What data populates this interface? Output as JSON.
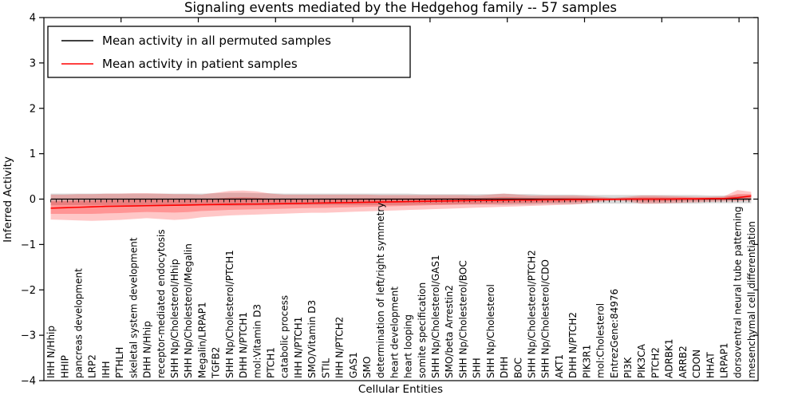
{
  "figure": {
    "title": "Signaling events mediated by the Hedgehog family -- 57 samples",
    "xlabel": "Cellular Entities",
    "ylabel": "Inferred Activity"
  },
  "legend": {
    "items": [
      {
        "label": "Mean activity in all permuted samples",
        "color": "#000000"
      },
      {
        "label": "Mean activity in patient samples",
        "color": "#ff0000"
      }
    ]
  },
  "chart_data": {
    "type": "line",
    "title": "Signaling events mediated by the Hedgehog family -- 57 samples",
    "xlabel": "Cellular Entities",
    "ylabel": "Inferred Activity",
    "ylim": [
      -4,
      4
    ],
    "ytick_labels": [
      "4",
      "3",
      "2",
      "1",
      "0",
      "−1",
      "−2",
      "−3",
      "−4"
    ],
    "yticks": [
      4,
      3,
      2,
      1,
      0,
      -1,
      -2,
      -3,
      -4
    ],
    "grid": false,
    "legend_position": "upper left",
    "categories": [
      "IHH N/Hhip",
      "HHIP",
      "pancreas development",
      "LRP2",
      "IHH",
      "PTHLH",
      "skeletal system development",
      "DHH N/Hhip",
      "receptor-mediated endocytosis",
      "SHH Np/Cholesterol/Hhip",
      "SHH Np/Cholesterol/Megalin",
      "Megalin/LRPAP1",
      "TGFB2",
      "SHH Np/Cholesterol/PTCH1",
      "DHH N/PTCH1",
      "mol:Vitamin D3",
      "PTCH1",
      "catabolic process",
      "IHH N/PTCH1",
      "SMO/Vitamin D3",
      "STIL",
      "IHH N/PTCH2",
      "GAS1",
      "SMO",
      "determination of left/right symmetry",
      "heart development",
      "heart looping",
      "somite specification",
      "SHH Np/Cholesterol/GAS1",
      "SMO/beta Arrestin2",
      "SHH Np/Cholesterol/BOC",
      "SHH",
      "SHH Np/Cholesterol",
      "DHH",
      "BOC",
      "SHH Np/Cholesterol/PTCH2",
      "SHH Np/Cholesterol/CDO",
      "AKT1",
      "DHH N/PTCH2",
      "PIK3R1",
      "mol:Cholesterol",
      "EntrezGene:84976",
      "PI3K",
      "PIK3CA",
      "PTCH2",
      "ADRBK1",
      "ARRB2",
      "CDON",
      "HHAT",
      "LRPAP1",
      "dorsoventral neural tube patterning",
      "mesenchymal cell differentiation"
    ],
    "series": [
      {
        "name": "Mean activity in all permuted samples",
        "color": "#000000",
        "values": [
          0,
          0,
          0,
          0,
          0,
          0,
          0,
          0,
          0,
          0,
          0,
          0,
          0,
          0,
          0,
          0,
          0,
          0,
          0,
          0,
          0,
          0,
          0,
          0,
          0,
          0,
          0,
          0,
          0,
          0,
          0,
          0,
          0,
          0,
          0,
          0,
          0,
          0,
          0,
          0,
          0,
          0,
          0,
          0,
          0,
          0,
          0,
          0,
          0,
          0,
          0,
          0
        ]
      },
      {
        "name": "Mean activity in patient samples",
        "color": "#ff0000",
        "values": [
          -0.2,
          -0.19,
          -0.18,
          -0.17,
          -0.16,
          -0.155,
          -0.15,
          -0.145,
          -0.14,
          -0.135,
          -0.13,
          -0.125,
          -0.12,
          -0.115,
          -0.11,
          -0.11,
          -0.105,
          -0.1,
          -0.095,
          -0.09,
          -0.085,
          -0.08,
          -0.075,
          -0.07,
          -0.065,
          -0.06,
          -0.055,
          -0.05,
          -0.045,
          -0.04,
          -0.035,
          -0.03,
          -0.03,
          -0.025,
          -0.02,
          -0.02,
          -0.015,
          -0.015,
          -0.01,
          -0.01,
          -0.005,
          -0.005,
          0.0,
          0.0,
          0.0,
          0.0,
          0.005,
          0.005,
          0.01,
          0.01,
          0.03,
          0.07
        ]
      }
    ],
    "bands": [
      {
        "name": "permuted-sample-range",
        "color": "#999999",
        "opacity": 0.38,
        "upper": [
          0.12,
          0.12,
          0.12,
          0.12,
          0.12,
          0.12,
          0.12,
          0.12,
          0.12,
          0.12,
          0.12,
          0.12,
          0.13,
          0.14,
          0.14,
          0.13,
          0.13,
          0.12,
          0.12,
          0.12,
          0.12,
          0.12,
          0.12,
          0.12,
          0.12,
          0.12,
          0.12,
          0.11,
          0.11,
          0.11,
          0.11,
          0.11,
          0.11,
          0.12,
          0.11,
          0.11,
          0.1,
          0.1,
          0.1,
          0.09,
          0.09,
          0.09,
          0.09,
          0.09,
          0.09,
          0.09,
          0.09,
          0.09,
          0.08,
          0.08,
          0.08,
          0.08
        ],
        "lower": [
          -0.13,
          -0.13,
          -0.13,
          -0.13,
          -0.13,
          -0.13,
          -0.13,
          -0.13,
          -0.13,
          -0.13,
          -0.13,
          -0.13,
          -0.14,
          -0.15,
          -0.15,
          -0.14,
          -0.14,
          -0.13,
          -0.13,
          -0.13,
          -0.13,
          -0.13,
          -0.13,
          -0.13,
          -0.13,
          -0.13,
          -0.13,
          -0.12,
          -0.12,
          -0.12,
          -0.12,
          -0.12,
          -0.12,
          -0.13,
          -0.12,
          -0.12,
          -0.11,
          -0.11,
          -0.11,
          -0.1,
          -0.1,
          -0.1,
          -0.1,
          -0.1,
          -0.1,
          -0.1,
          -0.1,
          -0.1,
          -0.09,
          -0.09,
          -0.09,
          -0.09
        ]
      },
      {
        "name": "patient-sample-range",
        "color": "#ff0000",
        "opacity": 0.22,
        "upper": [
          0.1,
          0.1,
          0.11,
          0.11,
          0.12,
          0.12,
          0.13,
          0.13,
          0.12,
          0.11,
          0.11,
          0.1,
          0.14,
          0.18,
          0.19,
          0.17,
          0.12,
          0.1,
          0.1,
          0.1,
          0.1,
          0.1,
          0.1,
          0.1,
          0.09,
          0.09,
          0.09,
          0.09,
          0.09,
          0.09,
          0.09,
          0.08,
          0.1,
          0.12,
          0.1,
          0.08,
          0.08,
          0.08,
          0.08,
          0.07,
          0.05,
          0.03,
          0.05,
          0.08,
          0.08,
          0.07,
          0.06,
          0.05,
          0.05,
          0.06,
          0.2,
          0.16
        ],
        "lower": [
          -0.45,
          -0.46,
          -0.47,
          -0.48,
          -0.47,
          -0.46,
          -0.44,
          -0.42,
          -0.44,
          -0.46,
          -0.44,
          -0.4,
          -0.38,
          -0.36,
          -0.35,
          -0.34,
          -0.33,
          -0.32,
          -0.31,
          -0.3,
          -0.3,
          -0.29,
          -0.28,
          -0.27,
          -0.26,
          -0.25,
          -0.24,
          -0.23,
          -0.22,
          -0.21,
          -0.2,
          -0.19,
          -0.18,
          -0.17,
          -0.16,
          -0.15,
          -0.14,
          -0.13,
          -0.12,
          -0.1,
          -0.06,
          -0.03,
          -0.05,
          -0.1,
          -0.1,
          -0.09,
          -0.08,
          -0.07,
          -0.06,
          -0.05,
          -0.05,
          -0.03
        ]
      }
    ]
  }
}
